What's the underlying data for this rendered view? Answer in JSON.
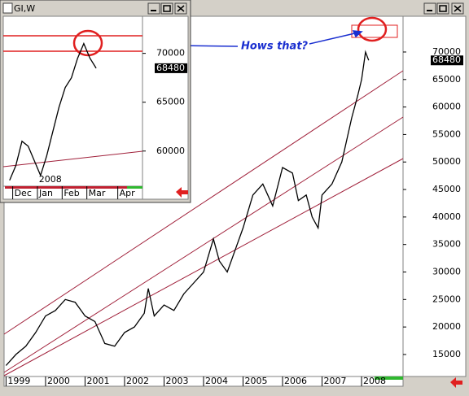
{
  "chart_data": [
    {
      "type": "line",
      "color": "#000000",
      "x": [
        1999.0,
        1999.25,
        1999.5,
        1999.75,
        2000.0,
        2000.25,
        2000.5,
        2000.75,
        2001.0,
        2001.25,
        2001.5,
        2001.75,
        2002.0,
        2002.25,
        2002.5,
        2002.6,
        2002.75,
        2003.0,
        2003.25,
        2003.5,
        2003.75,
        2004.0,
        2004.25,
        2004.4,
        2004.6,
        2004.75,
        2005.0,
        2005.25,
        2005.5,
        2005.75,
        2006.0,
        2006.25,
        2006.4,
        2006.6,
        2006.75,
        2006.9,
        2007.0,
        2007.25,
        2007.5,
        2007.75,
        2007.9,
        2008.0,
        2008.1,
        2008.18
      ],
      "values": [
        13000,
        15000,
        16500,
        19000,
        22000,
        23000,
        25000,
        24500,
        22000,
        21000,
        17000,
        16500,
        19000,
        20000,
        22500,
        27000,
        22000,
        24000,
        23000,
        26000,
        28000,
        30000,
        36000,
        32000,
        30000,
        33000,
        38000,
        44000,
        46000,
        42000,
        49000,
        48000,
        43000,
        44000,
        40000,
        38000,
        44000,
        46000,
        50000,
        58000,
        62000,
        65000,
        70000,
        68480
      ],
      "xlim": [
        1998.95,
        2009.05
      ],
      "xticks": [
        1999,
        2000,
        2001,
        2002,
        2003,
        2004,
        2005,
        2006,
        2007,
        2008
      ],
      "ylim": [
        11000,
        76500
      ],
      "yticks": [
        15000,
        20000,
        25000,
        30000,
        35000,
        40000,
        45000,
        50000,
        55000,
        60000,
        65000,
        70000
      ],
      "last_value": 68480,
      "annotation": "Hows that?"
    },
    {
      "type": "line",
      "title": "GI,W",
      "color": "#000000",
      "categories": [
        null,
        "Dec",
        null,
        null,
        null,
        "Jan",
        null,
        null,
        null,
        "Feb",
        null,
        null,
        null,
        "Mar",
        null,
        null,
        null,
        null,
        "Apr",
        null,
        null,
        null
      ],
      "values": [
        57000,
        58500,
        61000,
        60500,
        59000,
        57500,
        59500,
        62000,
        64500,
        66500,
        67500,
        69500,
        71000,
        69500,
        68480,
        null,
        null,
        null,
        null,
        null,
        null,
        null
      ],
      "ylim": [
        56400,
        73800
      ],
      "yticks": [
        60000,
        65000,
        70000
      ],
      "last_value": 68480,
      "year_label": "2008"
    }
  ]
}
